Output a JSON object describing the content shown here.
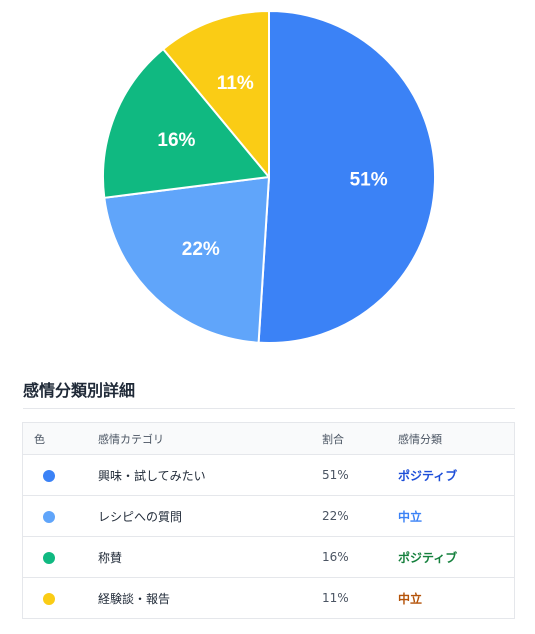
{
  "chart_data": {
    "type": "pie",
    "slices": [
      {
        "label": "興味・試してみたい",
        "value": 51,
        "display": "51%",
        "color": "#3b82f6"
      },
      {
        "label": "レシピへの質問",
        "value": 22,
        "display": "22%",
        "color": "#60a5fa"
      },
      {
        "label": "称賛",
        "value": 16,
        "display": "16%",
        "color": "#10b981"
      },
      {
        "label": "経験談・報告",
        "value": 11,
        "display": "11%",
        "color": "#facc15"
      }
    ],
    "start": "12 o'clock",
    "direction": "clockwise",
    "slice_border_color": "#ffffff"
  },
  "table": {
    "title": "感情分類別詳細",
    "headers": {
      "color": "色",
      "category": "感情カテゴリ",
      "percent": "割合",
      "classification": "感情分類"
    },
    "rows": [
      {
        "color": "#3b82f6",
        "category": "興味・試してみたい",
        "percent": "51%",
        "classification": "ポジティブ",
        "classification_color": "#1d4ed8"
      },
      {
        "color": "#60a5fa",
        "category": "レシピへの質問",
        "percent": "22%",
        "classification": "中立",
        "classification_color": "#3b82f6"
      },
      {
        "color": "#10b981",
        "category": "称賛",
        "percent": "16%",
        "classification": "ポジティブ",
        "classification_color": "#15803d"
      },
      {
        "color": "#facc15",
        "category": "経験談・報告",
        "percent": "11%",
        "classification": "中立",
        "classification_color": "#b45309"
      }
    ]
  }
}
